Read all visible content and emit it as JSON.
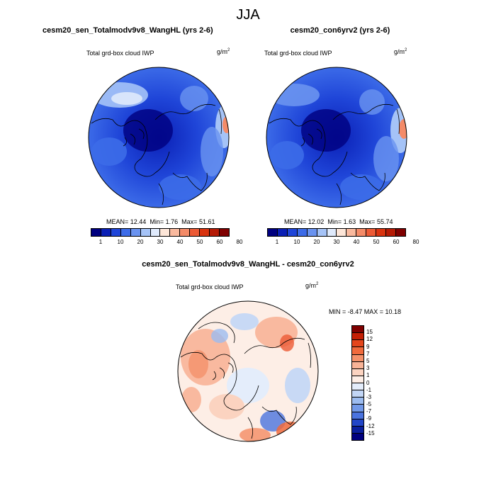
{
  "title": "JJA",
  "panels": [
    {
      "title": "cesm20_sen_Totalmodv9v8_WangHL (yrs 2-6)",
      "variable": "Total grd-box cloud IWP",
      "units_base": "g/m",
      "units_exp": "2",
      "stats": {
        "mean_label": "MEAN=",
        "mean": "12.44",
        "min_label": "Min=",
        "min": "1.76",
        "max_label": "Max=",
        "max": "51.61"
      }
    },
    {
      "title": "cesm20_con6yrv2 (yrs 2-6)",
      "variable": "Total grd-box cloud IWP",
      "units_base": "g/m",
      "units_exp": "2",
      "stats": {
        "mean_label": "MEAN=",
        "mean": "12.02",
        "min_label": "Min=",
        "min": "1.63",
        "max_label": "Max=",
        "max": "55.74"
      }
    },
    {
      "title": "cesm20_sen_Totalmodv9v8_WangHL - cesm20_con6yrv2",
      "variable": "Total grd-box cloud IWP",
      "units_base": "g/m",
      "units_exp": "2",
      "stats_text": "MIN = -8.47 MAX = 10.18"
    }
  ],
  "colorbar_abs": {
    "ticks": [
      "1",
      "10",
      "20",
      "30",
      "40",
      "50",
      "60",
      "80"
    ],
    "colors": [
      "#00007f",
      "#0a1fb5",
      "#1f45d8",
      "#3c6be8",
      "#6a93f0",
      "#a5c3f7",
      "#dfeafc",
      "#fde6d8",
      "#f9b99e",
      "#f48b68",
      "#ec5a35",
      "#d9330f",
      "#b51a05",
      "#7f0000"
    ]
  },
  "colorbar_diff": {
    "ticks": [
      "15",
      "12",
      "9",
      "7",
      "5",
      "3",
      "1",
      "0",
      "-1",
      "-3",
      "-5",
      "-7",
      "-9",
      "-12",
      "-15"
    ],
    "colors": [
      "#7f0000",
      "#c41f05",
      "#e4461c",
      "#f06a3c",
      "#f4916a",
      "#f8b397",
      "#fbd3c0",
      "#fdeee6",
      "#e4edfb",
      "#c2d6f6",
      "#9cbcf0",
      "#7299e8",
      "#4a73df",
      "#2246c8",
      "#0a1f9e",
      "#00007f"
    ]
  }
}
